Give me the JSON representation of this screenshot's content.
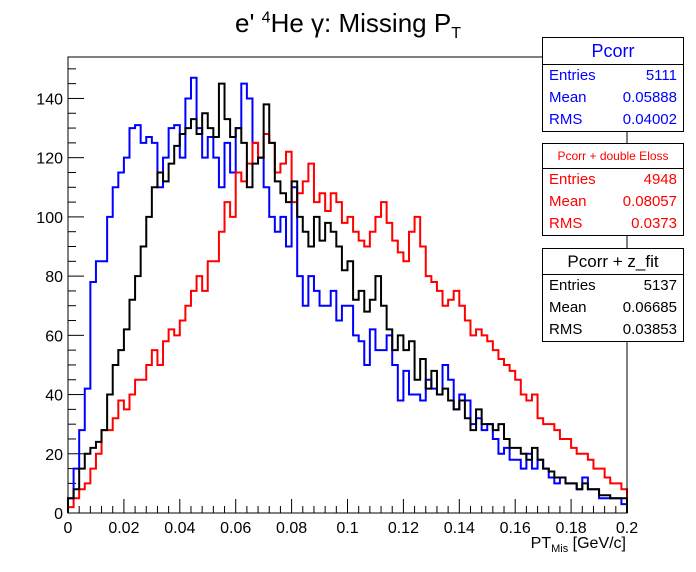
{
  "title": {
    "pre": "e' ",
    "sup": "4",
    "mid": "He γ: Missing P",
    "sub": "T"
  },
  "xlabel": {
    "main": "PT",
    "sub": "Mis",
    "unit": " [GeV/c]"
  },
  "stats": [
    {
      "name": "Pcorr",
      "color": "#0000ff",
      "entries": "5111",
      "mean": "0.05888",
      "rms": "0.04002"
    },
    {
      "name": "Pcorr + double Eloss",
      "color": "#ff0000",
      "entries": "4948",
      "mean": "0.08057",
      "rms": "0.0373"
    },
    {
      "name": "Pcorr + z_fit",
      "color": "#000000",
      "entries": "5137",
      "mean": "0.06685",
      "rms": "0.03853"
    }
  ],
  "stat_labels": {
    "entries": "Entries",
    "mean": "Mean",
    "rms": "RMS"
  },
  "chart_data": {
    "type": "histogram",
    "title": "e' 4He γ: Missing PT",
    "xlabel": "PT_Mis [GeV/c]",
    "ylabel": "",
    "xlim": [
      0,
      0.2
    ],
    "ylim": [
      0,
      154
    ],
    "bins": 100,
    "bin_width": 0.002,
    "xticks": [
      0,
      0.02,
      0.04,
      0.06,
      0.08,
      0.1,
      0.12,
      0.14,
      0.16,
      0.18,
      0.2
    ],
    "yticks": [
      0,
      20,
      40,
      60,
      80,
      100,
      120,
      140
    ],
    "xtick_labels": [
      "0",
      "0.02",
      "0.04",
      "0.06",
      "0.08",
      "0.1",
      "0.12",
      "0.14",
      "0.16",
      "0.18",
      "0.2"
    ],
    "ytick_labels": [
      "0",
      "20",
      "40",
      "60",
      "80",
      "100",
      "120",
      "140"
    ],
    "series": [
      {
        "name": "Pcorr",
        "color": "#0000ff",
        "values": [
          5,
          15,
          28,
          42,
          78,
          85,
          85,
          100,
          110,
          115,
          120,
          130,
          131,
          125,
          127,
          125,
          110,
          120,
          130,
          131,
          120,
          140,
          147,
          130,
          120,
          127,
          120,
          110,
          125,
          115,
          130,
          145,
          140,
          125,
          120,
          110,
          100,
          95,
          100,
          90,
          110,
          80,
          70,
          80,
          75,
          70,
          70,
          75,
          65,
          70,
          70,
          60,
          58,
          50,
          62,
          55,
          55,
          60,
          50,
          38,
          48,
          40,
          40,
          38,
          45,
          42,
          40,
          50,
          45,
          35,
          40,
          38,
          30,
          32,
          28,
          30,
          25,
          20,
          22,
          18,
          18,
          15,
          20,
          15,
          18,
          15,
          12,
          10,
          12,
          10,
          10,
          8,
          12,
          8,
          8,
          5,
          5,
          5,
          5,
          3
        ]
      },
      {
        "name": "Pcorr + double Eloss",
        "color": "#ff0000",
        "values": [
          2,
          5,
          8,
          10,
          15,
          20,
          28,
          28,
          32,
          38,
          35,
          40,
          45,
          45,
          50,
          55,
          50,
          58,
          62,
          60,
          65,
          70,
          75,
          80,
          75,
          85,
          85,
          95,
          105,
          100,
          115,
          112,
          118,
          125,
          120,
          128,
          125,
          115,
          118,
          122,
          105,
          108,
          112,
          118,
          105,
          108,
          102,
          108,
          105,
          98,
          100,
          95,
          92,
          90,
          95,
          100,
          105,
          98,
          92,
          88,
          85,
          95,
          100,
          90,
          80,
          78,
          75,
          70,
          72,
          75,
          70,
          65,
          60,
          62,
          60,
          58,
          55,
          52,
          50,
          48,
          45,
          40,
          38,
          40,
          32,
          30,
          30,
          28,
          25,
          25,
          22,
          20,
          20,
          18,
          15,
          15,
          12,
          10,
          10,
          8
        ]
      },
      {
        "name": "Pcorr + z_fit",
        "color": "#000000",
        "values": [
          5,
          8,
          15,
          20,
          22,
          24,
          28,
          40,
          50,
          55,
          62,
          72,
          80,
          90,
          100,
          110,
          115,
          112,
          118,
          124,
          128,
          130,
          133,
          128,
          135,
          130,
          127,
          145,
          133,
          127,
          130,
          125,
          110,
          118,
          120,
          138,
          125,
          112,
          108,
          105,
          112,
          100,
          95,
          90,
          100,
          92,
          98,
          95,
          90,
          82,
          85,
          72,
          75,
          68,
          72,
          80,
          70,
          62,
          55,
          60,
          55,
          58,
          45,
          52,
          42,
          48,
          40,
          42,
          38,
          35,
          38,
          32,
          28,
          35,
          30,
          30,
          28,
          30,
          25,
          22,
          22,
          20,
          18,
          22,
          18,
          15,
          14,
          12,
          12,
          10,
          10,
          8,
          10,
          8,
          8,
          6,
          6,
          5,
          5,
          5
        ]
      }
    ]
  }
}
